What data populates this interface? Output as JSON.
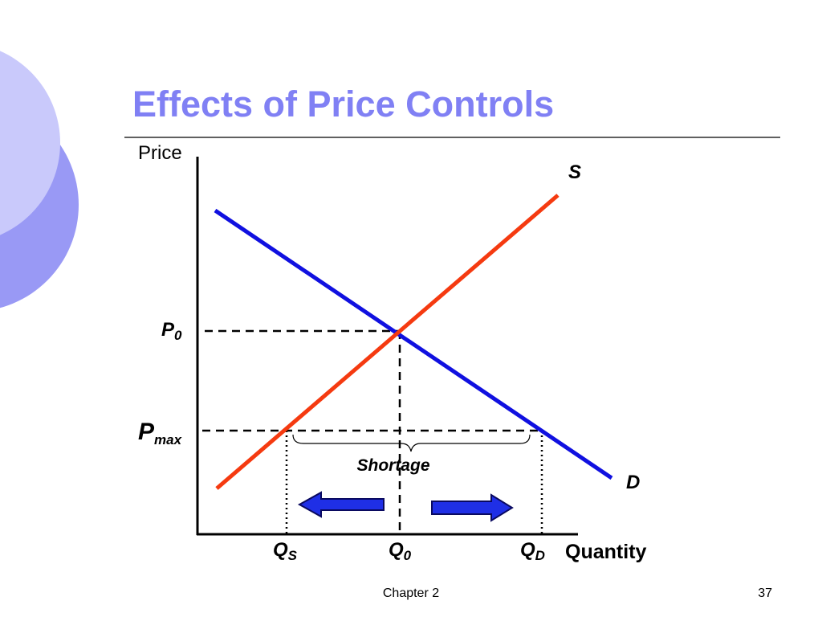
{
  "header": {
    "title": "Effects of Price Controls"
  },
  "diagram": {
    "y_axis_label": "Price",
    "x_axis_label": "Quantity",
    "supply_label": "S",
    "demand_label": "D",
    "p0": {
      "main": "P",
      "sub": "0"
    },
    "pmax": {
      "main": "P",
      "sub": "max"
    },
    "qs": {
      "main": "Q",
      "sub": "S"
    },
    "q0": {
      "main": "Q",
      "sub": "0"
    },
    "qd": {
      "main": "Q",
      "sub": "D"
    },
    "shortage_label": "Shortage"
  },
  "footer": {
    "chapter": "Chapter 2",
    "page": "37"
  }
}
